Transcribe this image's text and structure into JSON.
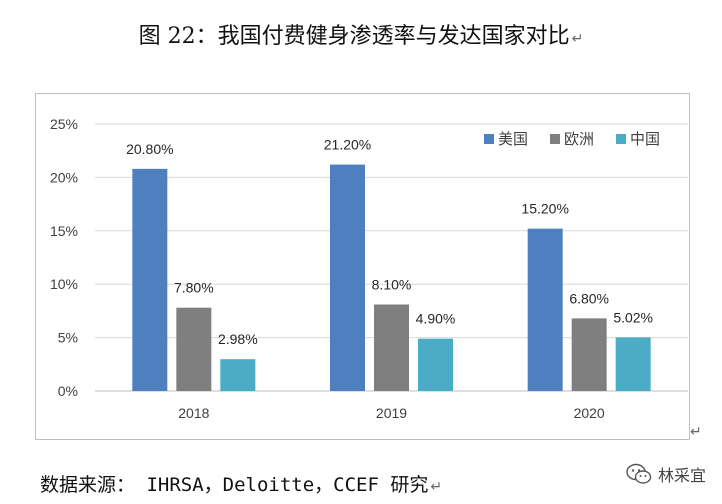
{
  "title": "图 22：我国付费健身渗透率与发达国家对比",
  "return_mark": "↵",
  "source": "数据来源：  IHRSA，Deloitte，CCEF 研究",
  "watermark": {
    "text": "林采宜",
    "icon": "wechat-icon"
  },
  "chart_data": {
    "type": "bar",
    "categories": [
      "2018",
      "2019",
      "2020"
    ],
    "series": [
      {
        "name": "美国",
        "values": [
          20.8,
          21.2,
          15.2
        ],
        "labels": [
          "20.80%",
          "21.20%",
          "15.20%"
        ],
        "color": "#4e7fbf"
      },
      {
        "name": "欧洲",
        "values": [
          7.8,
          8.1,
          6.8
        ],
        "labels": [
          "7.80%",
          "8.10%",
          "6.80%"
        ],
        "color": "#7f7f7f"
      },
      {
        "name": "中国",
        "values": [
          2.98,
          4.9,
          5.02
        ],
        "labels": [
          "2.98%",
          "4.90%",
          "5.02%"
        ],
        "color": "#4bacc6"
      }
    ],
    "yticks": [
      "0%",
      "5%",
      "10%",
      "15%",
      "20%",
      "25%"
    ],
    "ylim": [
      0,
      25
    ],
    "grid": true,
    "legend_position": "top-right"
  }
}
